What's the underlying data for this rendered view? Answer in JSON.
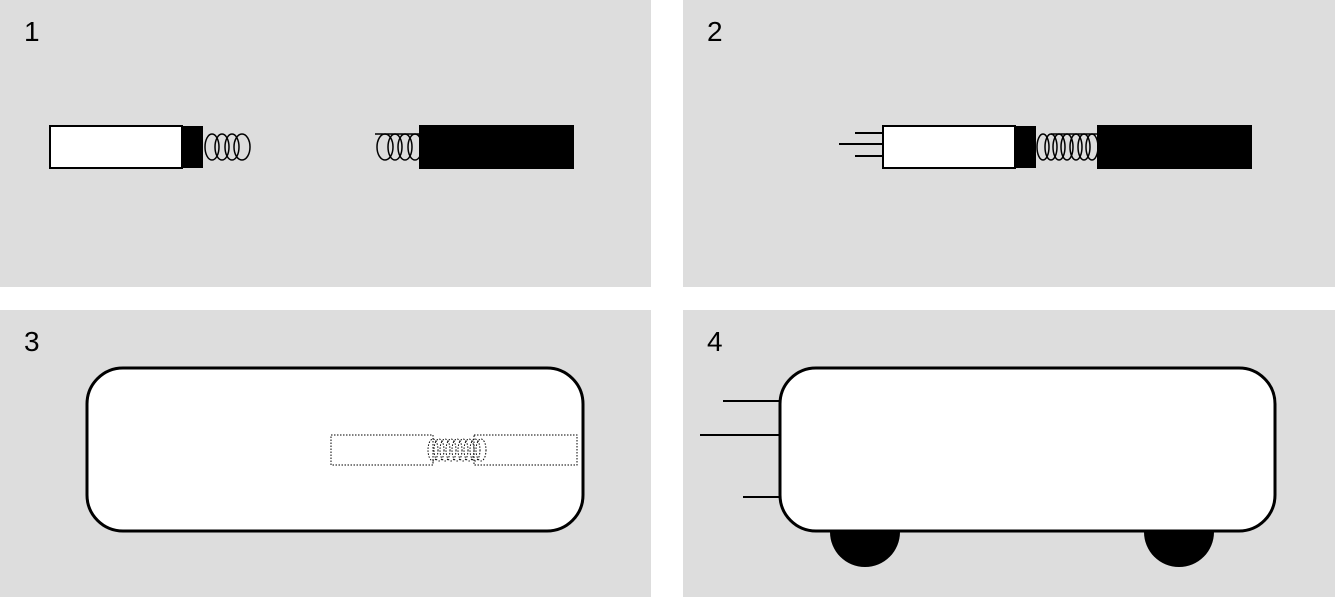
{
  "panels": [
    {
      "number": "1"
    },
    {
      "number": "2"
    },
    {
      "number": "3"
    },
    {
      "number": "4"
    }
  ],
  "colors": {
    "panel_background": "#dddddd",
    "wire_white": "#ffffff",
    "wire_black": "#000000",
    "stroke": "#000000"
  },
  "icons": {
    "spring": "coil-spring-icon",
    "wheel": "wheel-icon"
  }
}
